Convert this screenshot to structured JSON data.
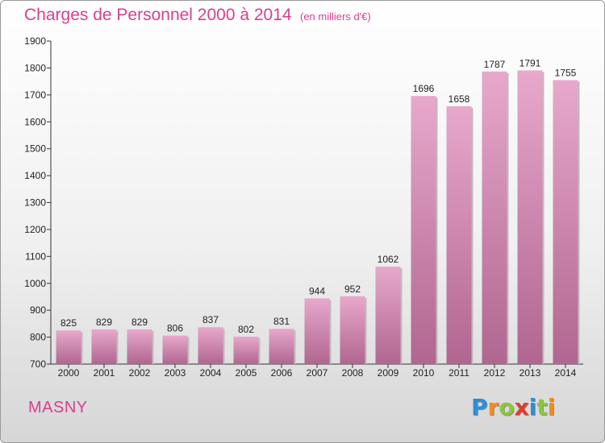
{
  "title": "Charges de Personnel 2000 à 2014",
  "subtitle": "(en milliers d'€)",
  "place": "MASNY",
  "logo": {
    "text": "Proxiti",
    "letters": [
      {
        "ch": "P",
        "color": "#2e8fd6"
      },
      {
        "ch": "r",
        "color": "#f28c1a"
      },
      {
        "ch": "o",
        "color": "#8cc63f"
      },
      {
        "ch": "x",
        "color": "#e33b2f"
      },
      {
        "ch": "i",
        "color": "#2e8fd6"
      },
      {
        "ch": "t",
        "color": "#8cc63f"
      },
      {
        "ch": "i",
        "color": "#f28c1a"
      }
    ]
  },
  "colors": {
    "text_accent": "#d6408f",
    "bar_light": "#e8a8cc",
    "bar_dark": "#b06690",
    "axis": "#333333"
  },
  "chart_data": {
    "type": "bar",
    "categories": [
      "2000",
      "2001",
      "2002",
      "2003",
      "2004",
      "2005",
      "2006",
      "2007",
      "2008",
      "2009",
      "2010",
      "2011",
      "2012",
      "2013",
      "2014"
    ],
    "values": [
      825,
      829,
      829,
      806,
      837,
      802,
      831,
      944,
      952,
      1062,
      1696,
      1658,
      1787,
      1791,
      1755
    ],
    "ylim": [
      700,
      1900
    ],
    "yticks": [
      700,
      800,
      900,
      1000,
      1100,
      1200,
      1300,
      1400,
      1500,
      1600,
      1700,
      1800,
      1900
    ],
    "grid": false,
    "legend": "none"
  }
}
